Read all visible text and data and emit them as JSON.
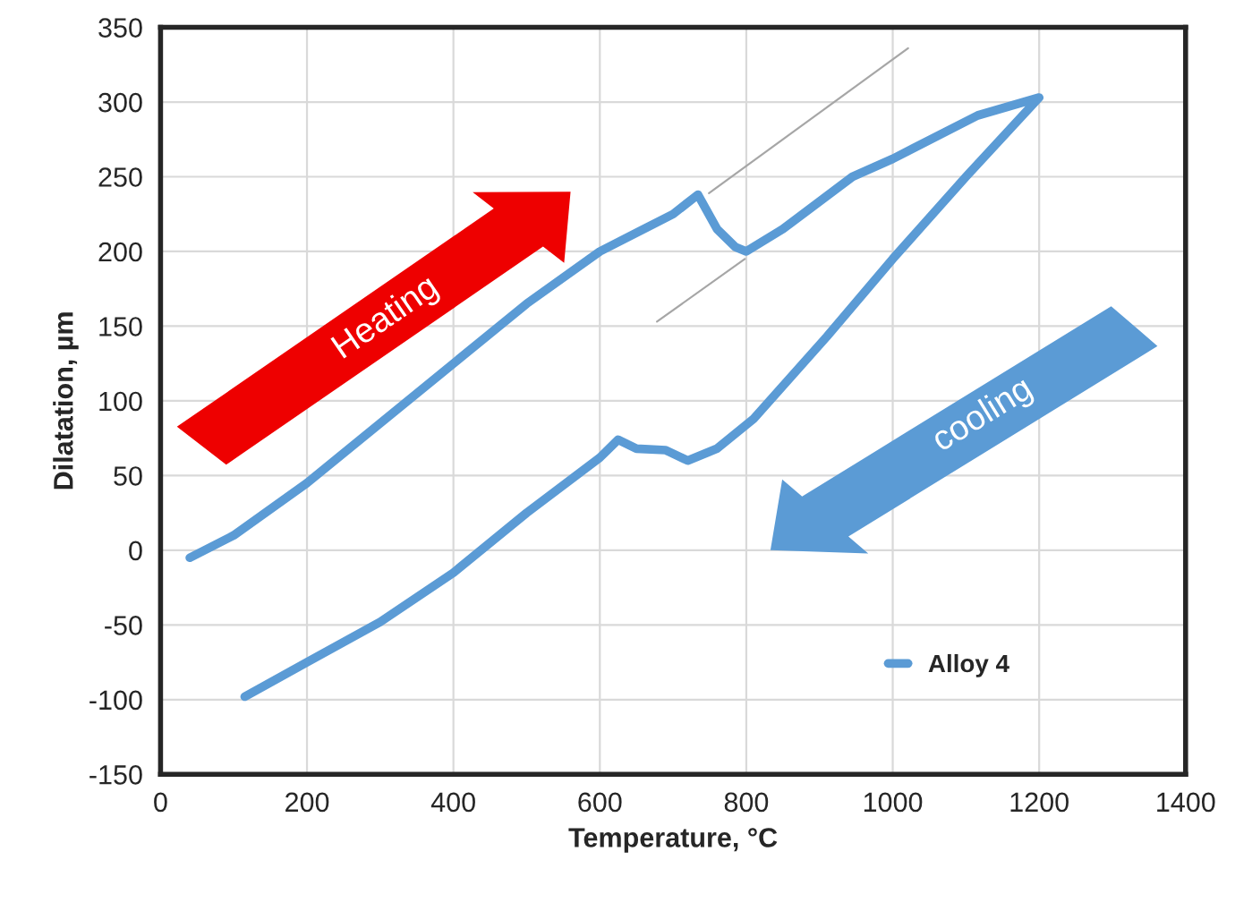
{
  "chart_data": {
    "type": "line",
    "xlabel": "Temperature, °C",
    "ylabel": "Dilatation, µm",
    "xlim": [
      0,
      1400
    ],
    "xticks": [
      0,
      200,
      400,
      600,
      800,
      1000,
      1200,
      1400
    ],
    "ylim": [
      -150,
      350
    ],
    "yticks": [
      -150,
      -100,
      -50,
      0,
      50,
      100,
      150,
      200,
      250,
      300,
      350
    ],
    "grid": true,
    "legend": "bottom right",
    "series": [
      {
        "name": "Alloy 4",
        "color": "#5b9bd5",
        "x": [
          40,
          100,
          200,
          300,
          400,
          500,
          600,
          700,
          734,
          760,
          785,
          800,
          850,
          945,
          1000,
          1116,
          1200,
          1100,
          1000,
          910,
          810,
          760,
          720,
          690,
          650,
          625,
          600,
          500,
          400,
          300,
          200,
          115
        ],
        "values": [
          -5,
          10,
          45,
          85,
          125,
          165,
          200,
          225,
          238,
          215,
          203,
          200,
          215,
          250,
          262,
          291,
          303,
          250,
          195,
          143,
          88,
          68,
          60,
          67,
          68,
          74,
          62,
          25,
          -15,
          -48,
          -75,
          -98
        ]
      },
      {
        "color": "#a6a6a6",
        "x": [
          749,
          1021
        ],
        "values": [
          239,
          336
        ]
      },
      {
        "color": "#a6a6a6",
        "x": [
          678,
          798
        ],
        "values": [
          153,
          195
        ]
      }
    ],
    "annotations": [
      "Heating",
      "cooling"
    ]
  }
}
